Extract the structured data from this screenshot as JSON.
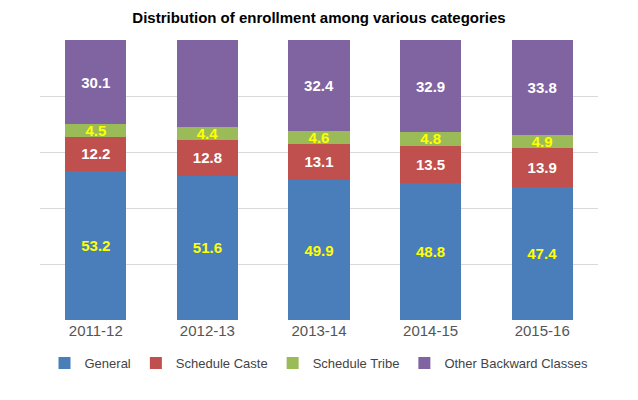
{
  "chart_data": {
    "type": "bar",
    "title": "Distribution of enrollment among various categories",
    "categories": [
      "2011-12",
      "2012-13",
      "2013-14",
      "2014-15",
      "2015-16"
    ],
    "series": [
      {
        "name": "General",
        "color": "#4a7ebb",
        "values": [
          53.2,
          51.6,
          49.9,
          48.8,
          47.4
        ]
      },
      {
        "name": "Schedule Caste",
        "color": "#c0504d",
        "values": [
          12.2,
          12.8,
          13.1,
          13.5,
          13.9
        ]
      },
      {
        "name": "Schedule Tribe",
        "color": "#9bbb59",
        "values": [
          4.5,
          4.4,
          4.6,
          4.8,
          4.9
        ]
      },
      {
        "name": "Other Backward Classes",
        "color": "#8064a2",
        "values": [
          30.1,
          31.2,
          32.4,
          32.9,
          33.8
        ]
      }
    ],
    "ylim": [
      0,
      100
    ],
    "yticks": [
      0,
      20,
      40,
      60,
      80,
      100
    ],
    "stacked": true,
    "data_labels": true,
    "grid": true,
    "tick_labels": "x",
    "legend": "bottom"
  }
}
